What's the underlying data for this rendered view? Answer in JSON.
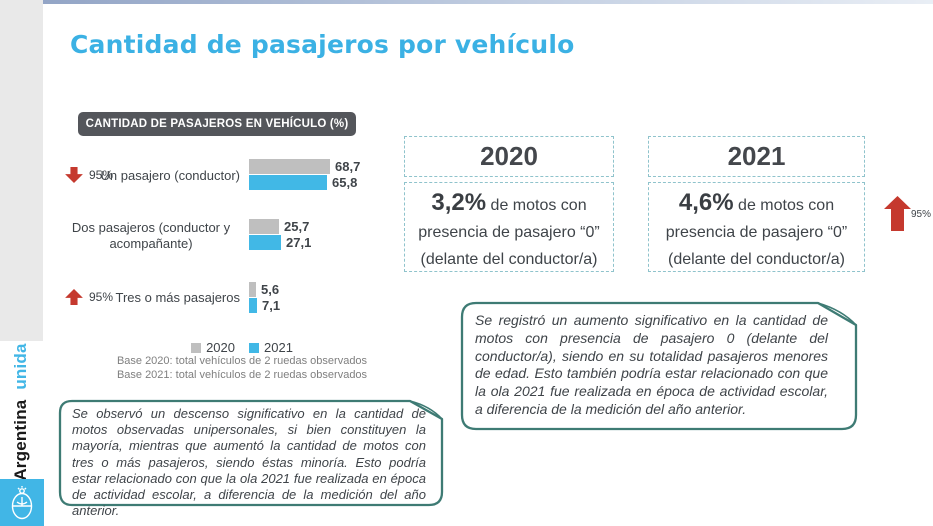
{
  "brand": {
    "country": "Argentina",
    "suffix": "unida"
  },
  "page_title": "Cantidad de pasajeros por vehículo",
  "chart_data": {
    "type": "bar",
    "orientation": "horizontal",
    "title": "CANTIDAD DE PASAJEROS EN VEHÍCULO (%)",
    "unit": "%",
    "xlim": [
      0,
      100
    ],
    "grid": false,
    "legend_position": "bottom",
    "categories": [
      "Un pasajero (conductor)",
      "Dos pasajeros (conductor y acompañante)",
      "Tres o más pasajeros"
    ],
    "series": [
      {
        "name": "2020",
        "color": "#BFBFBF",
        "values": [
          68.7,
          25.7,
          5.6
        ],
        "display": [
          "68,7",
          "25,7",
          "5,6"
        ]
      },
      {
        "name": "2021",
        "color": "#41B8E6",
        "values": [
          65.8,
          27.1,
          7.1
        ],
        "display": [
          "65,8",
          "27,1",
          "7,1"
        ]
      }
    ],
    "legend": [
      "2020",
      "2021"
    ],
    "significance": [
      {
        "category": "Un pasajero (conductor)",
        "direction": "down",
        "confidence": "95%"
      },
      {
        "category": "Tres o más pasajeros",
        "direction": "up",
        "confidence": "95%"
      }
    ],
    "notes": [
      "Base 2020: total vehículos de 2 ruedas observados",
      "Base 2021: total vehículos de 2 ruedas observados"
    ]
  },
  "panels": [
    {
      "year": "2020",
      "stat": "3,2%",
      "stat_suffix": " de motos con",
      "line2": "presencia de pasajero “0”",
      "line3": "(delante del conductor/a)"
    },
    {
      "year": "2021",
      "stat": "4,6%",
      "stat_suffix": " de motos con",
      "line2": "presencia de pasajero “0”",
      "line3": "(delante del conductor/a)",
      "significance": {
        "direction": "up",
        "confidence": "95%"
      }
    }
  ],
  "callouts": {
    "left": "Se observó un descenso significativo en la cantidad de motos observadas unipersonales, si bien constituyen la mayoría, mientras que aumentó la cantidad de motos con tres o más pasajeros, siendo éstas minoría. Esto podría estar relacionado con que la ola 2021 fue realizada en época de actividad escolar, a diferencia de la medición del año anterior.",
    "right": "Se registró un aumento significativo en la cantidad de motos con presencia de pasajero 0 (delante del conductor/a), siendo en su totalidad pasajeros menores de edad. Esto también podría estar relacionado con que la ola 2021 fue realizada en época de actividad escolar, a diferencia de la medición del año anterior."
  },
  "colors": {
    "accent_blue": "#3BB1E4",
    "bar_2020": "#BFBFBF",
    "bar_2021": "#41B8E6",
    "significance_red": "#C5392E",
    "callout_border_teal": "#3E7B74",
    "panel_border_dashed": "#8FC3CC",
    "chart_header_bg": "#54565B",
    "sidebar_gray": "#E9E9E9"
  }
}
